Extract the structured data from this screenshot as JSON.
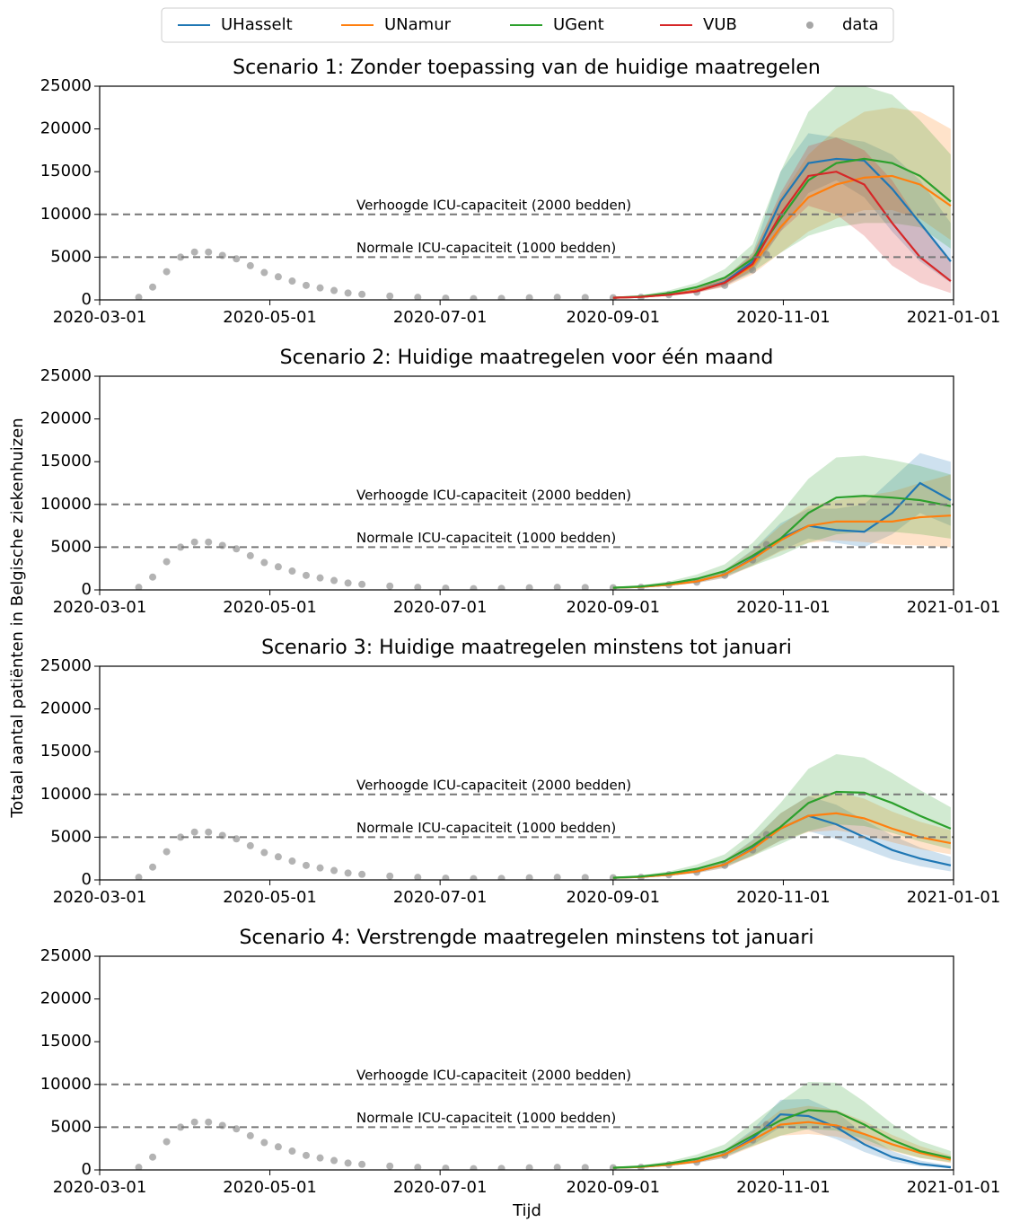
{
  "figure": {
    "ylabel": "Totaal aantal patiënten in Belgische ziekenhuizen",
    "xlabel": "Tijd"
  },
  "legend": [
    {
      "name": "UHasselt",
      "color": "#1f77b4",
      "marker": "line"
    },
    {
      "name": "UNamur",
      "color": "#ff7f0e",
      "marker": "line"
    },
    {
      "name": "UGent",
      "color": "#2ca02c",
      "marker": "line"
    },
    {
      "name": "VUB",
      "color": "#d62728",
      "marker": "line"
    },
    {
      "name": "data",
      "color": "#808080",
      "marker": "dot"
    }
  ],
  "observed": {
    "x": [
      "2020-03-15",
      "2020-03-20",
      "2020-03-25",
      "2020-03-30",
      "2020-04-04",
      "2020-04-09",
      "2020-04-14",
      "2020-04-19",
      "2020-04-24",
      "2020-04-29",
      "2020-05-04",
      "2020-05-09",
      "2020-05-14",
      "2020-05-19",
      "2020-05-24",
      "2020-05-29",
      "2020-06-03",
      "2020-06-13",
      "2020-06-23",
      "2020-07-03",
      "2020-07-13",
      "2020-07-23",
      "2020-08-02",
      "2020-08-12",
      "2020-08-22",
      "2020-09-01",
      "2020-09-11",
      "2020-09-21",
      "2020-10-01",
      "2020-10-11",
      "2020-10-21",
      "2020-10-26"
    ],
    "values": [
      300,
      1500,
      3300,
      5000,
      5600,
      5600,
      5200,
      4800,
      4000,
      3200,
      2700,
      2200,
      1700,
      1400,
      1100,
      800,
      650,
      450,
      300,
      200,
      150,
      170,
      250,
      300,
      280,
      250,
      300,
      600,
      900,
      1700,
      3500,
      5300
    ]
  },
  "chart_data": [
    {
      "type": "line",
      "title": "Scenario 1: Zonder toepassing van de huidige maatregelen",
      "x": [
        "2020-09-01",
        "2020-09-11",
        "2020-09-21",
        "2020-10-01",
        "2020-10-11",
        "2020-10-21",
        "2020-10-31",
        "2020-11-10",
        "2020-11-20",
        "2020-11-30",
        "2020-12-10",
        "2020-12-20",
        "2020-12-31"
      ],
      "xlim": [
        "2020-03-01",
        "2021-01-01"
      ],
      "xticks": [
        "2020-03-01",
        "2020-05-01",
        "2020-07-01",
        "2020-09-01",
        "2020-11-01",
        "2021-01-01"
      ],
      "ylim": [
        0,
        25000
      ],
      "yticks": [
        0,
        5000,
        10000,
        15000,
        20000,
        25000
      ],
      "hlines": [
        {
          "value": 10000,
          "label": "Verhoogde ICU-capaciteit (2000 bedden)"
        },
        {
          "value": 5000,
          "label": "Normale ICU-capaciteit (1000 bedden)"
        }
      ],
      "series": [
        {
          "name": "UHasselt",
          "values": [
            250,
            350,
            650,
            1100,
            2100,
            4500,
            11500,
            16000,
            16500,
            16300,
            13000,
            9000,
            4500
          ],
          "lower": [
            200,
            300,
            500,
            900,
            1600,
            3200,
            8000,
            12500,
            14000,
            12000,
            8000,
            4500,
            2000
          ],
          "upper": [
            300,
            450,
            800,
            1400,
            2600,
            5500,
            15000,
            19500,
            19000,
            18500,
            17000,
            14000,
            9000
          ]
        },
        {
          "name": "UNamur",
          "values": [
            250,
            350,
            600,
            1100,
            2000,
            4000,
            8500,
            12000,
            13500,
            14300,
            14500,
            13500,
            11000
          ],
          "lower": [
            200,
            300,
            500,
            900,
            1500,
            3000,
            5500,
            8000,
            9500,
            10500,
            10500,
            9500,
            7000
          ],
          "upper": [
            300,
            450,
            800,
            1400,
            2600,
            5500,
            12000,
            17000,
            20000,
            22000,
            22500,
            22000,
            20000
          ]
        },
        {
          "name": "UGent",
          "values": [
            250,
            400,
            800,
            1500,
            2600,
            4800,
            9500,
            14000,
            16000,
            16500,
            16000,
            14500,
            11500
          ],
          "lower": [
            200,
            300,
            600,
            1100,
            1800,
            3300,
            5500,
            7500,
            8500,
            9000,
            9000,
            8500,
            6000
          ],
          "upper": [
            350,
            550,
            1100,
            2000,
            3600,
            6500,
            15000,
            22000,
            25000,
            25000,
            24000,
            21000,
            17000
          ]
        },
        {
          "name": "VUB",
          "values": [
            250,
            350,
            600,
            1000,
            2000,
            4200,
            10000,
            14500,
            15000,
            13500,
            9000,
            5000,
            2200
          ],
          "lower": [
            200,
            300,
            500,
            800,
            1600,
            3500,
            8000,
            11000,
            10000,
            7500,
            4000,
            2000,
            800
          ],
          "upper": [
            300,
            450,
            750,
            1300,
            2600,
            5200,
            12500,
            18000,
            19000,
            17500,
            14000,
            9000,
            4500
          ]
        }
      ]
    },
    {
      "type": "line",
      "title": "Scenario 2: Huidige maatregelen voor één maand",
      "x": [
        "2020-09-01",
        "2020-09-11",
        "2020-09-21",
        "2020-10-01",
        "2020-10-11",
        "2020-10-21",
        "2020-10-31",
        "2020-11-10",
        "2020-11-20",
        "2020-11-30",
        "2020-12-10",
        "2020-12-20",
        "2020-12-31"
      ],
      "xlim": [
        "2020-03-01",
        "2021-01-01"
      ],
      "xticks": [
        "2020-03-01",
        "2020-05-01",
        "2020-07-01",
        "2020-09-01",
        "2020-11-01",
        "2021-01-01"
      ],
      "ylim": [
        0,
        25000
      ],
      "yticks": [
        0,
        5000,
        10000,
        15000,
        20000,
        25000
      ],
      "hlines": [
        {
          "value": 10000,
          "label": "Verhoogde ICU-capaciteit (2000 bedden)"
        },
        {
          "value": 5000,
          "label": "Normale ICU-capaciteit (1000 bedden)"
        }
      ],
      "series": [
        {
          "name": "UHasselt",
          "values": [
            250,
            350,
            600,
            1000,
            1800,
            3700,
            6000,
            7500,
            7000,
            6800,
            9000,
            12500,
            10500
          ],
          "lower": [
            200,
            300,
            500,
            800,
            1400,
            2900,
            4600,
            6000,
            5500,
            5000,
            6500,
            9000,
            7500
          ],
          "upper": [
            300,
            450,
            750,
            1300,
            2300,
            4700,
            7800,
            9500,
            9500,
            10000,
            13000,
            16000,
            15000
          ]
        },
        {
          "name": "UNamur",
          "values": [
            250,
            350,
            600,
            1000,
            1800,
            3600,
            5800,
            7500,
            8000,
            8000,
            8000,
            8500,
            8700
          ],
          "lower": [
            200,
            300,
            500,
            800,
            1400,
            2800,
            4500,
            5500,
            5800,
            5600,
            5300,
            5200,
            5000
          ],
          "upper": [
            300,
            450,
            750,
            1300,
            2300,
            4600,
            7500,
            9800,
            10500,
            11000,
            11500,
            12500,
            13500
          ]
        },
        {
          "name": "UGent",
          "values": [
            250,
            400,
            750,
            1300,
            2200,
            4000,
            6000,
            9000,
            10800,
            11000,
            10800,
            10500,
            9800
          ],
          "lower": [
            200,
            300,
            550,
            1000,
            1600,
            2800,
            4000,
            5500,
            6500,
            6800,
            6800,
            6500,
            6000
          ],
          "upper": [
            350,
            550,
            1000,
            1800,
            3000,
            5500,
            9000,
            13000,
            15500,
            15700,
            15200,
            14500,
            13500
          ]
        }
      ]
    },
    {
      "type": "line",
      "title": "Scenario 3: Huidige maatregelen minstens tot januari",
      "x": [
        "2020-09-01",
        "2020-09-11",
        "2020-09-21",
        "2020-10-01",
        "2020-10-11",
        "2020-10-21",
        "2020-10-31",
        "2020-11-10",
        "2020-11-20",
        "2020-11-30",
        "2020-12-10",
        "2020-12-20",
        "2020-12-31"
      ],
      "xlim": [
        "2020-03-01",
        "2021-01-01"
      ],
      "xticks": [
        "2020-03-01",
        "2020-05-01",
        "2020-07-01",
        "2020-09-01",
        "2020-11-01",
        "2021-01-01"
      ],
      "ylim": [
        0,
        25000
      ],
      "yticks": [
        0,
        5000,
        10000,
        15000,
        20000,
        25000
      ],
      "hlines": [
        {
          "value": 10000,
          "label": "Verhoogde ICU-capaciteit (2000 bedden)"
        },
        {
          "value": 5000,
          "label": "Normale ICU-capaciteit (1000 bedden)"
        }
      ],
      "series": [
        {
          "name": "UHasselt",
          "values": [
            250,
            350,
            600,
            1000,
            1800,
            3700,
            6000,
            7500,
            6500,
            5000,
            3500,
            2500,
            1700
          ],
          "lower": [
            200,
            300,
            500,
            800,
            1400,
            2900,
            4600,
            5700,
            4800,
            3600,
            2400,
            1600,
            1000
          ],
          "upper": [
            300,
            450,
            750,
            1300,
            2300,
            4700,
            7800,
            9800,
            8800,
            7000,
            5200,
            3800,
            2700
          ]
        },
        {
          "name": "UNamur",
          "values": [
            250,
            350,
            600,
            1000,
            1800,
            3600,
            6000,
            7500,
            7800,
            7200,
            6000,
            5000,
            4300
          ],
          "lower": [
            200,
            300,
            500,
            800,
            1400,
            2800,
            4600,
            5600,
            5800,
            5300,
            4400,
            3600,
            3000
          ],
          "upper": [
            300,
            450,
            750,
            1300,
            2300,
            4600,
            7800,
            9800,
            10300,
            9500,
            8000,
            6800,
            5800
          ]
        },
        {
          "name": "UGent",
          "values": [
            250,
            400,
            750,
            1300,
            2200,
            4000,
            6200,
            9000,
            10300,
            10200,
            9000,
            7500,
            6000
          ],
          "lower": [
            200,
            300,
            550,
            1000,
            1600,
            2800,
            4200,
            5700,
            6500,
            6300,
            5500,
            4500,
            3600
          ],
          "upper": [
            350,
            550,
            1000,
            1800,
            3000,
            5500,
            9000,
            13000,
            14700,
            14300,
            12500,
            10500,
            8500
          ]
        }
      ]
    },
    {
      "type": "line",
      "title": "Scenario 4: Verstrengde maatregelen minstens tot januari",
      "x": [
        "2020-09-01",
        "2020-09-11",
        "2020-09-21",
        "2020-10-01",
        "2020-10-11",
        "2020-10-21",
        "2020-10-31",
        "2020-11-10",
        "2020-11-20",
        "2020-11-30",
        "2020-12-10",
        "2020-12-20",
        "2020-12-31"
      ],
      "xlim": [
        "2020-03-01",
        "2021-01-01"
      ],
      "xticks": [
        "2020-03-01",
        "2020-05-01",
        "2020-07-01",
        "2020-09-01",
        "2020-11-01",
        "2021-01-01"
      ],
      "ylim": [
        0,
        25000
      ],
      "yticks": [
        0,
        5000,
        10000,
        15000,
        20000,
        25000
      ],
      "hlines": [
        {
          "value": 10000,
          "label": "Verhoogde ICU-capaciteit (2000 bedden)"
        },
        {
          "value": 5000,
          "label": "Normale ICU-capaciteit (1000 bedden)"
        }
      ],
      "series": [
        {
          "name": "UHasselt",
          "values": [
            250,
            350,
            600,
            1000,
            1800,
            3700,
            6500,
            6300,
            5000,
            3000,
            1500,
            700,
            300
          ],
          "lower": [
            200,
            300,
            500,
            800,
            1400,
            2900,
            5000,
            4700,
            3600,
            2100,
            1000,
            450,
            200
          ],
          "upper": [
            300,
            450,
            750,
            1300,
            2300,
            4700,
            8200,
            8300,
            6800,
            4200,
            2200,
            1100,
            500
          ]
        },
        {
          "name": "UNamur",
          "values": [
            250,
            350,
            600,
            1000,
            1800,
            3500,
            5300,
            5600,
            5200,
            4200,
            3000,
            2000,
            1200
          ],
          "lower": [
            200,
            300,
            500,
            800,
            1400,
            2700,
            4000,
            4200,
            3900,
            3100,
            2200,
            1400,
            800
          ],
          "upper": [
            300,
            450,
            750,
            1300,
            2300,
            4500,
            7000,
            7500,
            7000,
            5700,
            4100,
            2800,
            1700
          ]
        },
        {
          "name": "UGent",
          "values": [
            250,
            400,
            750,
            1300,
            2200,
            4000,
            5800,
            7000,
            6800,
            5300,
            3500,
            2200,
            1400
          ],
          "lower": [
            200,
            300,
            550,
            1000,
            1600,
            2800,
            4000,
            4800,
            4600,
            3600,
            2300,
            1400,
            900
          ],
          "upper": [
            350,
            550,
            1000,
            1800,
            3000,
            5500,
            8000,
            10300,
            10200,
            8000,
            5400,
            3400,
            2200
          ]
        }
      ]
    }
  ]
}
